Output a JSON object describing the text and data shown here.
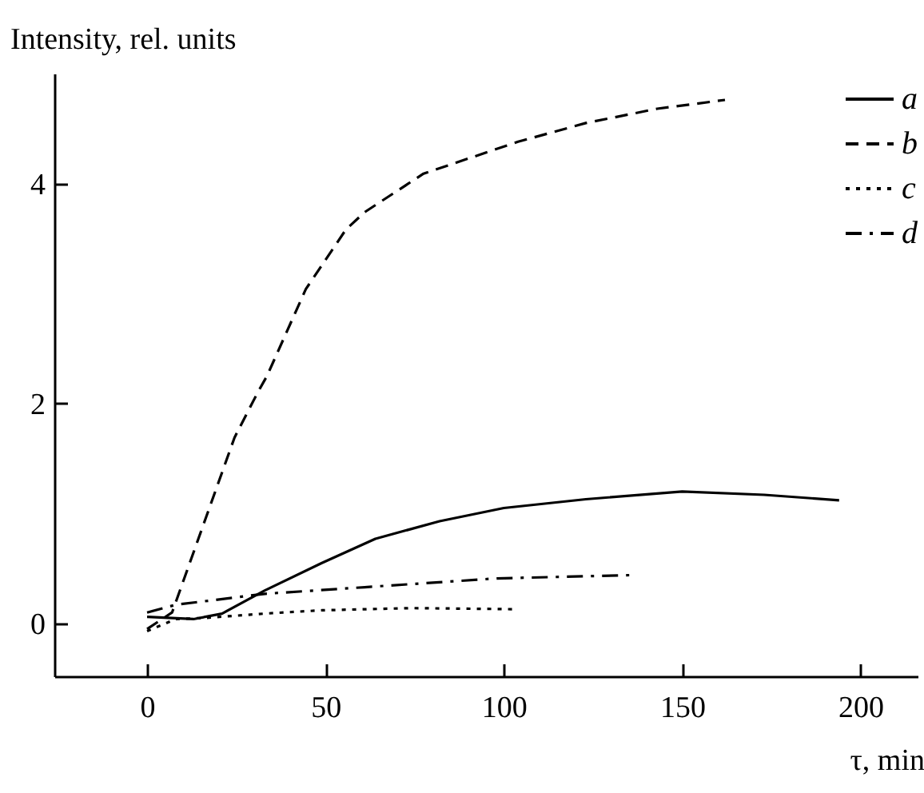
{
  "chart_data": {
    "type": "line",
    "xlabel": "τ, min",
    "ylabel": "Intensity, rel. units",
    "xlim": [
      -26,
      216
    ],
    "ylim": [
      -0.48,
      5
    ],
    "xticks": [
      0,
      50,
      100,
      150,
      200
    ],
    "yticks": [
      0,
      2,
      4
    ],
    "grid": false,
    "legend": "top right",
    "marker": "none",
    "series": [
      {
        "name": "a",
        "color": "#000000",
        "line_style": "solid",
        "x": [
          0,
          13,
          21,
          33,
          49,
          64,
          82,
          100,
          123,
          150,
          173,
          194
        ],
        "values": [
          0.06,
          0.04,
          0.09,
          0.3,
          0.55,
          0.77,
          0.93,
          1.05,
          1.13,
          1.2,
          1.17,
          1.12
        ]
      },
      {
        "name": "b",
        "color": "#000000",
        "line_style": "dashed",
        "x": [
          0,
          7,
          24.5,
          31,
          33.6,
          44.5,
          55.7,
          61,
          77.5,
          104,
          123,
          143,
          162
        ],
        "values": [
          -0.05,
          0.1,
          1.69,
          2.1,
          2.25,
          3.04,
          3.58,
          3.74,
          4.09,
          4.38,
          4.55,
          4.68,
          4.76
        ]
      },
      {
        "name": "c",
        "color": "#000000",
        "line_style": "dotted",
        "x": [
          0,
          8,
          16,
          33,
          49,
          74,
          103
        ],
        "values": [
          -0.07,
          0.04,
          0.05,
          0.09,
          0.12,
          0.14,
          0.13
        ]
      },
      {
        "name": "d",
        "color": "#000000",
        "line_style": "dashdot",
        "x": [
          0,
          8,
          33,
          61,
          98,
          136
        ],
        "values": [
          0.1,
          0.17,
          0.27,
          0.33,
          0.41,
          0.44
        ]
      }
    ]
  }
}
